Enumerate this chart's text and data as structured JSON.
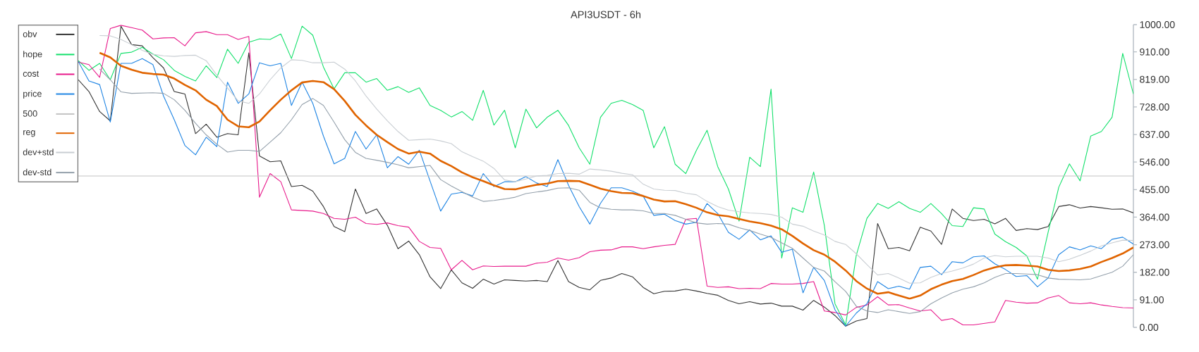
{
  "chart_data": {
    "type": "line",
    "title": "API3USDT - 6h",
    "categories": [
      null,
      null,
      null,
      null,
      null,
      null,
      null,
      null,
      null,
      null,
      null,
      null,
      null,
      null,
      null,
      null,
      null,
      null,
      null,
      null,
      null,
      null,
      null,
      null,
      null,
      null,
      null,
      null,
      null,
      null,
      null,
      null,
      null,
      null,
      null,
      null,
      null,
      null,
      null,
      null,
      null,
      null,
      null,
      null,
      null,
      null,
      null,
      null,
      null,
      null,
      null,
      null,
      null,
      null,
      null,
      null,
      null,
      null,
      null,
      null,
      null,
      null,
      null,
      null,
      null,
      null,
      null,
      null,
      null,
      null,
      null,
      null,
      null,
      null,
      null,
      null,
      null,
      null,
      null,
      null,
      null,
      null,
      null,
      null,
      null,
      null,
      null,
      null,
      null,
      null,
      null,
      null,
      null,
      null,
      null,
      null,
      null,
      null,
      null,
      null
    ],
    "series": [
      {
        "name": "obv",
        "color": "#333333",
        "values": [
          818,
          779,
          713,
          682,
          995,
          934,
          930,
          891,
          857,
          779,
          771,
          640,
          671,
          628,
          640,
          636,
          907,
          566,
          547,
          550,
          465,
          469,
          450,
          399,
          333,
          316,
          457,
          376,
          391,
          337,
          260,
          285,
          240,
          167,
          128,
          190,
          147,
          129,
          159,
          143,
          157,
          155,
          153,
          155,
          151,
          221,
          151,
          132,
          124,
          155,
          163,
          178,
          167,
          132,
          111,
          119,
          120,
          126,
          120,
          112,
          106,
          89,
          78,
          85,
          77,
          80,
          70,
          70,
          57,
          89,
          67,
          39,
          4,
          21,
          29,
          343,
          260,
          264,
          253,
          331,
          318,
          274,
          391,
          360,
          353,
          357,
          342,
          360,
          320,
          326,
          323,
          333,
          399,
          405,
          394,
          399,
          395,
          390,
          391,
          378
        ]
      },
      {
        "name": "hope",
        "color": "#12e06a",
        "values": [
          881,
          849,
          872,
          818,
          905,
          909,
          925,
          903,
          884,
          849,
          829,
          814,
          864,
          825,
          919,
          872,
          942,
          953,
          951,
          969,
          888,
          995,
          965,
          860,
          788,
          841,
          841,
          810,
          822,
          783,
          795,
          776,
          791,
          733,
          717,
          695,
          713,
          684,
          783,
          668,
          717,
          593,
          721,
          659,
          694,
          717,
          667,
          593,
          539,
          694,
          740,
          750,
          736,
          717,
          593,
          663,
          539,
          508,
          585,
          651,
          531,
          457,
          351,
          562,
          531,
          787,
          229,
          395,
          380,
          513,
          337,
          78,
          8,
          238,
          360,
          409,
          393,
          415,
          393,
          380,
          409,
          376,
          336,
          333,
          395,
          391,
          308,
          283,
          264,
          236,
          159,
          314,
          463,
          540,
          484,
          632,
          647,
          694,
          905,
          771
        ]
      },
      {
        "name": "cost",
        "color": "#e8198b",
        "values": [
          876,
          868,
          826,
          987,
          998,
          990,
          982,
          953,
          956,
          957,
          930,
          973,
          977,
          967,
          967,
          951,
          961,
          430,
          508,
          481,
          388,
          386,
          384,
          376,
          360,
          357,
          364,
          343,
          340,
          345,
          336,
          331,
          284,
          264,
          261,
          190,
          221,
          190,
          203,
          201,
          202,
          202,
          202,
          212,
          215,
          229,
          222,
          230,
          250,
          255,
          256,
          266,
          266,
          260,
          266,
          271,
          274,
          357,
          360,
          136,
          132,
          134,
          128,
          129,
          128,
          145,
          143,
          143,
          145,
          151,
          54,
          49,
          41,
          66,
          74,
          101,
          74,
          75,
          64,
          54,
          58,
          23,
          29,
          8,
          8,
          13,
          18,
          89,
          83,
          80,
          81,
          97,
          105,
          81,
          78,
          81,
          74,
          69,
          65,
          64
        ]
      },
      {
        "name": "price",
        "color": "#1e84e3",
        "values": [
          878,
          814,
          802,
          678,
          872,
          872,
          888,
          868,
          764,
          686,
          601,
          570,
          628,
          597,
          810,
          740,
          771,
          874,
          864,
          872,
          733,
          810,
          740,
          632,
          540,
          558,
          647,
          589,
          636,
          527,
          564,
          539,
          585,
          484,
          384,
          440,
          446,
          434,
          508,
          465,
          481,
          481,
          498,
          477,
          465,
          554,
          469,
          399,
          341,
          410,
          461,
          461,
          450,
          434,
          370,
          374,
          353,
          341,
          347,
          409,
          376,
          314,
          291,
          322,
          289,
          302,
          248,
          258,
          114,
          198,
          155,
          58,
          4,
          47,
          78,
          151,
          128,
          136,
          126,
          198,
          202,
          174,
          217,
          213,
          233,
          236,
          210,
          191,
          168,
          171,
          134,
          163,
          240,
          266,
          256,
          269,
          260,
          291,
          298,
          275
        ]
      },
      {
        "name": "500",
        "color": "#c4c4c4",
        "values": [
          500,
          500,
          500,
          500,
          500,
          500,
          500,
          500,
          500,
          500,
          500,
          500,
          500,
          500,
          500,
          500,
          500,
          500,
          500,
          500,
          500,
          500,
          500,
          500,
          500,
          500,
          500,
          500,
          500,
          500,
          500,
          500,
          500,
          500,
          500,
          500,
          500,
          500,
          500,
          500,
          500,
          500,
          500,
          500,
          500,
          500,
          500,
          500,
          500,
          500,
          500,
          500,
          500,
          500,
          500,
          500,
          500,
          500,
          500,
          500,
          500,
          500,
          500,
          500,
          500,
          500,
          500,
          500,
          500,
          500,
          500,
          500,
          500,
          500,
          500,
          500,
          500,
          500,
          500,
          500,
          500,
          500,
          500,
          500,
          500,
          500,
          500,
          500,
          500,
          500,
          500,
          500,
          500,
          500,
          500,
          500,
          500,
          500,
          500,
          500
        ]
      },
      {
        "name": "reg",
        "color": "#e06400",
        "values": [
          null,
          null,
          907,
          892,
          864,
          851,
          841,
          837,
          835,
          822,
          801,
          783,
          752,
          731,
          686,
          664,
          661,
          680,
          717,
          752,
          783,
          809,
          814,
          810,
          787,
          748,
          702,
          667,
          636,
          612,
          589,
          574,
          580,
          574,
          550,
          533,
          512,
          496,
          483,
          469,
          457,
          456,
          464,
          471,
          475,
          483,
          484,
          483,
          471,
          458,
          450,
          444,
          443,
          434,
          422,
          416,
          417,
          407,
          395,
          380,
          371,
          367,
          358,
          350,
          344,
          336,
          324,
          302,
          277,
          255,
          240,
          217,
          188,
          153,
          128,
          111,
          116,
          105,
          95,
          105,
          126,
          141,
          153,
          160,
          173,
          188,
          198,
          205,
          206,
          204,
          201,
          190,
          186,
          188,
          193,
          201,
          216,
          229,
          244,
          264
        ]
      },
      {
        "name": "dev+std",
        "color": "#c9ced3",
        "values": [
          null,
          null,
          964,
          963,
          951,
          934,
          915,
          902,
          897,
          895,
          898,
          899,
          881,
          833,
          791,
          748,
          740,
          771,
          818,
          857,
          884,
          882,
          874,
          874,
          876,
          853,
          814,
          764,
          721,
          682,
          647,
          618,
          620,
          622,
          616,
          607,
          580,
          564,
          549,
          525,
          487,
          481,
          490,
          500,
          502,
          508,
          509,
          506,
          523,
          520,
          516,
          509,
          504,
          473,
          457,
          453,
          452,
          443,
          438,
          416,
          399,
          387,
          382,
          378,
          376,
          373,
          364,
          341,
          334,
          318,
          305,
          284,
          274,
          243,
          207,
          173,
          178,
          163,
          146,
          147,
          165,
          178,
          186,
          196,
          209,
          229,
          237,
          233,
          235,
          235,
          235,
          229,
          217,
          225,
          238,
          252,
          269,
          279,
          288,
          287
        ]
      },
      {
        "name": "dev-std",
        "color": "#94a0ab",
        "values": [
          null,
          null,
          853,
          818,
          778,
          773,
          774,
          775,
          773,
          752,
          717,
          674,
          636,
          605,
          579,
          585,
          585,
          581,
          612,
          643,
          686,
          736,
          756,
          733,
          678,
          620,
          578,
          558,
          552,
          545,
          537,
          527,
          531,
          535,
          488,
          467,
          448,
          430,
          416,
          419,
          424,
          430,
          442,
          447,
          452,
          460,
          461,
          453,
          413,
          395,
          390,
          388,
          388,
          385,
          376,
          376,
          370,
          357,
          345,
          341,
          343,
          341,
          329,
          320,
          308,
          297,
          279,
          261,
          229,
          198,
          186,
          151,
          119,
          70,
          54,
          49,
          58,
          52,
          46,
          52,
          78,
          97,
          114,
          126,
          134,
          147,
          165,
          178,
          178,
          176,
          174,
          163,
          159,
          158,
          157,
          160,
          171,
          182,
          202,
          240
        ]
      }
    ],
    "ylim": [
      0,
      1000
    ],
    "yticks": [
      {
        "value": 0,
        "label": "0.00"
      },
      {
        "value": 91,
        "label": "91.00"
      },
      {
        "value": 182,
        "label": "182.00"
      },
      {
        "value": 273,
        "label": "273.00"
      },
      {
        "value": 364,
        "label": "364.00"
      },
      {
        "value": 455,
        "label": "455.00"
      },
      {
        "value": 546,
        "label": "546.00"
      },
      {
        "value": 637,
        "label": "637.00"
      },
      {
        "value": 728,
        "label": "728.00"
      },
      {
        "value": 819,
        "label": "819.00"
      },
      {
        "value": 910,
        "label": "910.00"
      },
      {
        "value": 1000,
        "label": "1000.00"
      }
    ],
    "legend": "top left",
    "tick_labels": "y"
  }
}
